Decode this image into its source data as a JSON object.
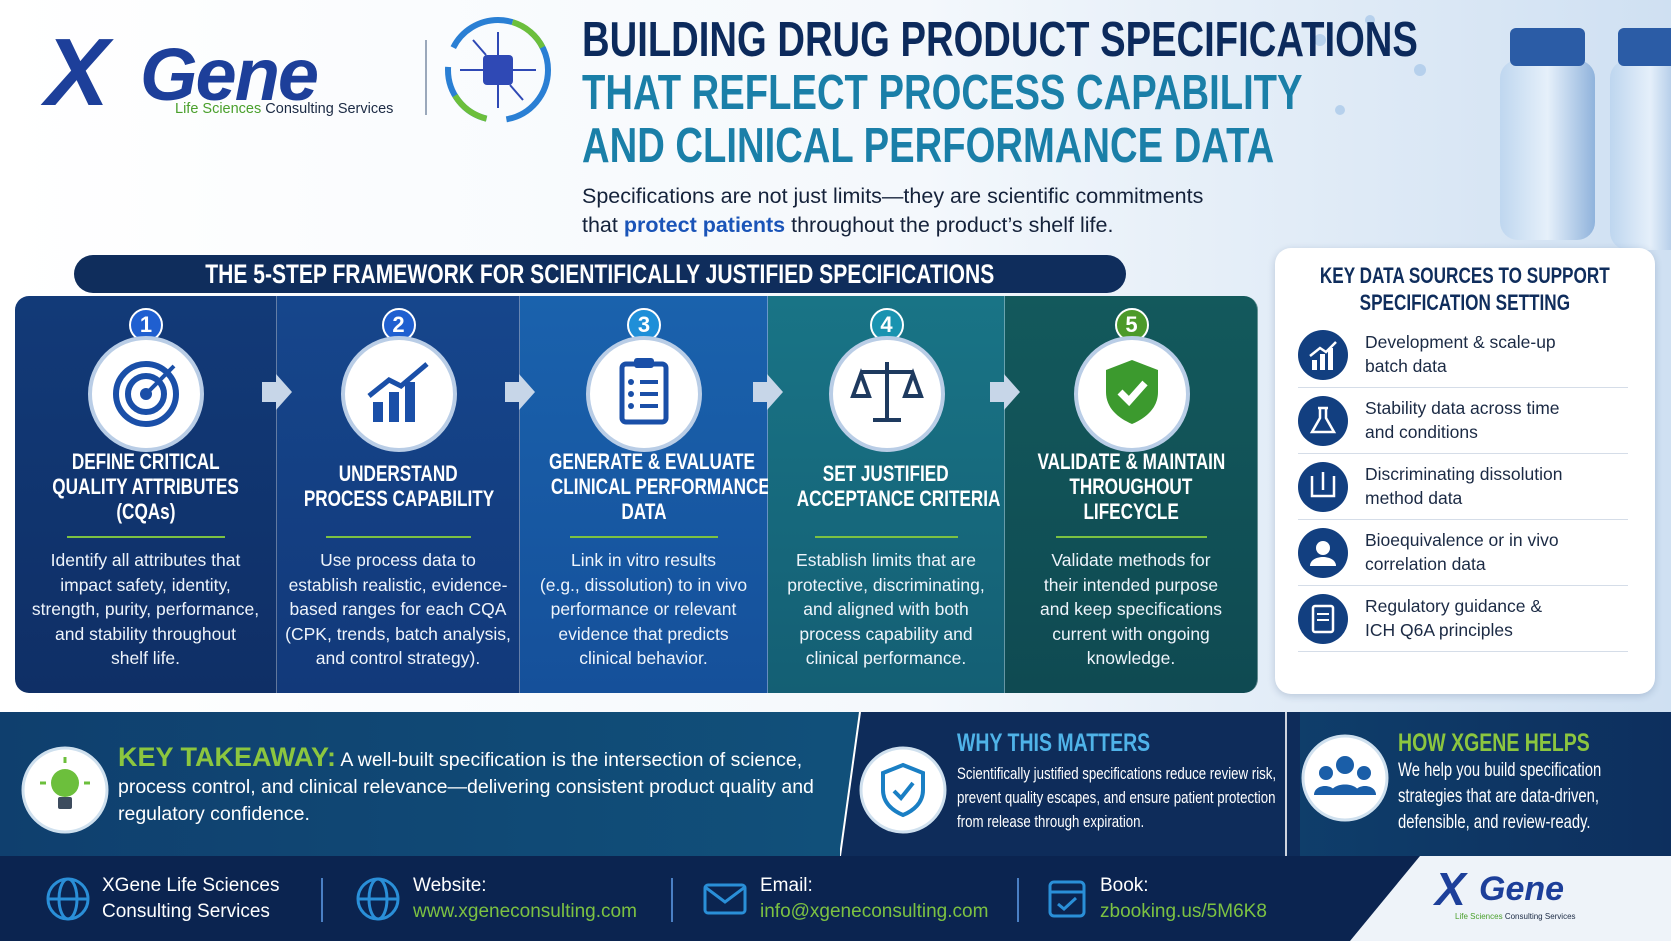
{
  "logo": {
    "brand_x": "X",
    "brand_rest": "Gene",
    "tagline_green": "Life Sciences",
    "tagline_rest": "Consulting Services"
  },
  "header": {
    "title_lines": [
      "BUILDING DRUG PRODUCT SPECIFICATIONS",
      "THAT REFLECT PROCESS CAPABILITY",
      "AND CLINICAL PERFORMANCE DATA"
    ],
    "subtitle_line1": "Specifications are not just limits—they are scientific commitments",
    "subtitle_pre": "that",
    "subtitle_highlight": "protect patients",
    "subtitle_post": "throughout the product’s shelf life."
  },
  "framework": {
    "title": "THE 5-STEP FRAMEWORK FOR SCIENTIFICALLY JUSTIFIED SPECIFICATIONS",
    "steps": [
      {
        "number": 1,
        "title_lines": [
          "DEFINE CRITICAL",
          "QUALITY ATTRIBUTES",
          "(CQAs)"
        ],
        "text_lines": [
          "Identify all attributes that",
          "impact safety, identity,",
          "strength, purity, performance,",
          "and stability throughout",
          "shelf life."
        ]
      },
      {
        "number": 2,
        "title_lines": [
          "UNDERSTAND",
          "PROCESS CAPABILITY"
        ],
        "text_lines": [
          "Use process data to",
          "establish realistic, evidence-",
          "based ranges for each CQA",
          "(CPK, trends, batch analysis,",
          "and control strategy)."
        ]
      },
      {
        "number": 3,
        "title_lines": [
          "GENERATE & EVALUATE",
          "CLINICAL PERFORMANCE",
          "DATA"
        ],
        "text_lines": [
          "Link in vitro results",
          "(e.g., dissolution) to in vivo",
          "performance or relevant",
          "evidence that predicts",
          "clinical behavior."
        ]
      },
      {
        "number": 4,
        "title_lines": [
          "SET JUSTIFIED",
          "ACCEPTANCE CRITERIA"
        ],
        "text_lines": [
          "Establish limits that are",
          "protective, discriminating,",
          "and aligned with both",
          "process capability and",
          "clinical performance."
        ]
      },
      {
        "number": 5,
        "title_lines": [
          "VALIDATE & MAINTAIN",
          "THROUGHOUT",
          "LIFECYCLE"
        ],
        "text_lines": [
          "Validate methods for",
          "their intended purpose",
          "and keep specifications",
          "current with ongoing",
          "knowledge."
        ]
      }
    ]
  },
  "sources": {
    "title_lines": [
      "KEY DATA SOURCES TO SUPPORT",
      "SPECIFICATION SETTING"
    ],
    "items": [
      [
        "Development & scale-up",
        "batch data"
      ],
      [
        "Stability data across time",
        "and conditions"
      ],
      [
        "Discriminating dissolution",
        "method data"
      ],
      [
        "Bioequivalence or in vivo",
        "correlation data"
      ],
      [
        "Regulatory guidance &",
        "ICH Q6A principles"
      ]
    ]
  },
  "takeaway": {
    "label": "KEY TAKEAWAY:",
    "text": "A well-built specification is the intersection of science, process control, and clinical relevance—delivering consistent product quality and regulatory confidence."
  },
  "why": {
    "title": "WHY THIS MATTERS",
    "text_lines": [
      "Scientifically justified specifications reduce review risk,",
      "prevent quality escapes, and ensure patient protection",
      "from release through expiration."
    ]
  },
  "how": {
    "title": "HOW XGENE HELPS",
    "text_lines": [
      "We help you build specification",
      "strategies that are data-driven,",
      "defensible, and review-ready."
    ]
  },
  "footer": {
    "company_lines": [
      "XGene Life Sciences",
      "Consulting Services"
    ],
    "website_label": "Website:",
    "website": "www.xgeneconsulting.com",
    "email_label": "Email:",
    "email": "info@xgeneconsulting.com",
    "book_label": "Book:",
    "book": "zbooking.us/5M6K8"
  }
}
